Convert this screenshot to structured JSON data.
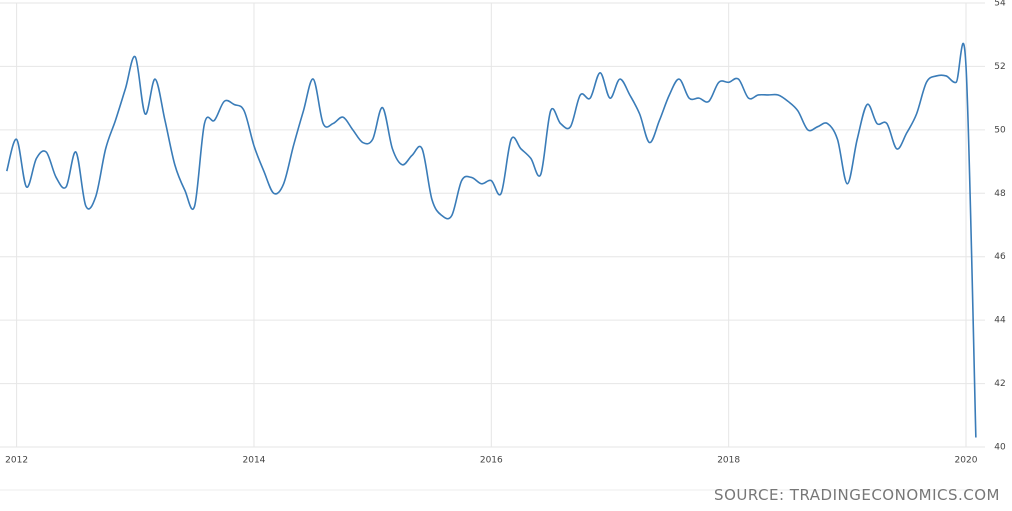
{
  "chart_data": {
    "type": "line",
    "source": "SOURCE: TRADINGECONOMICS.COM",
    "x": [
      2011.917,
      2012,
      2012.083,
      2012.167,
      2012.25,
      2012.333,
      2012.417,
      2012.5,
      2012.583,
      2012.667,
      2012.75,
      2012.833,
      2012.917,
      2013,
      2013.083,
      2013.167,
      2013.25,
      2013.333,
      2013.417,
      2013.5,
      2013.583,
      2013.667,
      2013.75,
      2013.833,
      2013.917,
      2014,
      2014.083,
      2014.167,
      2014.25,
      2014.333,
      2014.417,
      2014.5,
      2014.583,
      2014.667,
      2014.75,
      2014.833,
      2014.917,
      2015,
      2015.083,
      2015.167,
      2015.25,
      2015.333,
      2015.417,
      2015.5,
      2015.583,
      2015.667,
      2015.75,
      2015.833,
      2015.917,
      2016,
      2016.083,
      2016.167,
      2016.25,
      2016.333,
      2016.417,
      2016.5,
      2016.583,
      2016.667,
      2016.75,
      2016.833,
      2016.917,
      2017,
      2017.083,
      2017.167,
      2017.25,
      2017.333,
      2017.417,
      2017.5,
      2017.583,
      2017.667,
      2017.75,
      2017.833,
      2017.917,
      2018,
      2018.083,
      2018.167,
      2018.25,
      2018.333,
      2018.417,
      2018.5,
      2018.583,
      2018.667,
      2018.75,
      2018.833,
      2018.917,
      2019,
      2019.083,
      2019.167,
      2019.25,
      2019.333,
      2019.417,
      2019.5,
      2019.583,
      2019.667,
      2019.75,
      2019.833,
      2019.917,
      2020,
      2020.083
    ],
    "series": [
      {
        "color": "#3a7cb8",
        "values": [
          48.7,
          49.7,
          48.2,
          49.1,
          49.3,
          48.5,
          48.2,
          49.3,
          47.6,
          47.9,
          49.4,
          50.3,
          51.3,
          52.3,
          50.5,
          51.6,
          50.3,
          48.9,
          48.1,
          47.6,
          50.2,
          50.3,
          50.9,
          50.8,
          50.6,
          49.5,
          48.7,
          48.0,
          48.3,
          49.5,
          50.6,
          51.6,
          50.2,
          50.2,
          50.4,
          50.0,
          49.6,
          49.7,
          50.7,
          49.4,
          48.9,
          49.2,
          49.4,
          47.8,
          47.3,
          47.3,
          48.4,
          48.5,
          48.3,
          48.4,
          48.0,
          49.7,
          49.4,
          49.1,
          48.6,
          50.6,
          50.2,
          50.1,
          51.1,
          51.0,
          51.8,
          51.0,
          51.6,
          51.1,
          50.5,
          49.6,
          50.3,
          51.1,
          51.6,
          51.0,
          51.0,
          50.9,
          51.5,
          51.5,
          51.6,
          51.0,
          51.1,
          51.1,
          51.1,
          50.9,
          50.6,
          50.0,
          50.1,
          50.2,
          49.7,
          48.3,
          49.7,
          50.8,
          50.2,
          50.2,
          49.4,
          49.9,
          50.5,
          51.5,
          51.7,
          51.7,
          51.5,
          52.0,
          40.3
        ]
      }
    ],
    "xlim": [
      2011.86,
      2020.16
    ],
    "xticks": [
      2012,
      2014,
      2016,
      2018,
      2020
    ],
    "ylim": [
      40,
      54
    ],
    "yticks": [
      40,
      42,
      44,
      46,
      48,
      50,
      52,
      54
    ],
    "grid": true
  }
}
